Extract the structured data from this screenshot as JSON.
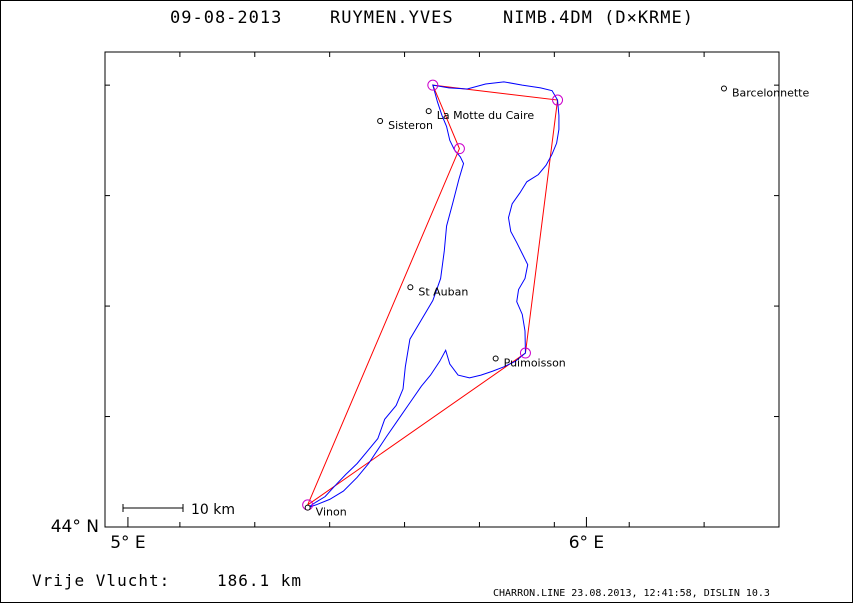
{
  "header": {
    "date": "09-08-2013",
    "pilot": "RUYMEN.YVES",
    "glider": "NIMB.4DM (D×KRME)"
  },
  "footer": {
    "distance_label": "Vrije Vlucht:",
    "distance_value": "186.1 km",
    "software": "CHARRON.LINE 23.08.2013, 12:41:58, DISLIN 10.3"
  },
  "colors": {
    "task": "#ff0000",
    "track": "#0000ff",
    "turnpoint": "#cc00cc",
    "text": "#000000"
  },
  "chart_data": {
    "type": "map",
    "xlim": [
      4.95,
      6.42
    ],
    "ylim": [
      44.0,
      44.86
    ],
    "x_ticks": [
      {
        "value": 5.0,
        "label": "5° E"
      },
      {
        "value": 6.0,
        "label": "6° E"
      }
    ],
    "y_ticks": [
      {
        "value": 44.0,
        "label": "44° N"
      }
    ],
    "scale_bar": {
      "label": "10 km",
      "km": 10
    },
    "places": [
      {
        "name": "Barcelonnette",
        "lon": 6.3,
        "lat": 44.794
      },
      {
        "name": "La Motte du Caire",
        "lon": 5.656,
        "lat": 44.753
      },
      {
        "name": "Sisteron",
        "lon": 5.55,
        "lat": 44.735
      },
      {
        "name": "St Auban",
        "lon": 5.616,
        "lat": 44.434
      },
      {
        "name": "Puimoisson",
        "lon": 5.802,
        "lat": 44.305
      },
      {
        "name": "Vinon",
        "lon": 5.392,
        "lat": 44.035
      }
    ],
    "turnpoints": [
      {
        "lon": 5.392,
        "lat": 44.04
      },
      {
        "lon": 5.665,
        "lat": 44.8
      },
      {
        "lon": 5.937,
        "lat": 44.773
      },
      {
        "lon": 5.723,
        "lat": 44.685
      },
      {
        "lon": 5.867,
        "lat": 44.315
      }
    ],
    "task": [
      [
        5.392,
        44.04
      ],
      [
        5.723,
        44.685
      ],
      [
        5.665,
        44.8
      ],
      [
        5.937,
        44.773
      ],
      [
        5.867,
        44.315
      ],
      [
        5.392,
        44.04
      ]
    ],
    "track": [
      [
        5.392,
        44.035
      ],
      [
        5.41,
        44.045
      ],
      [
        5.43,
        44.055
      ],
      [
        5.452,
        44.075
      ],
      [
        5.475,
        44.095
      ],
      [
        5.5,
        44.115
      ],
      [
        5.525,
        44.14
      ],
      [
        5.545,
        44.16
      ],
      [
        5.56,
        44.195
      ],
      [
        5.585,
        44.22
      ],
      [
        5.6,
        44.25
      ],
      [
        5.605,
        44.29
      ],
      [
        5.615,
        44.34
      ],
      [
        5.64,
        44.375
      ],
      [
        5.665,
        44.41
      ],
      [
        5.682,
        44.45
      ],
      [
        5.69,
        44.5
      ],
      [
        5.695,
        44.545
      ],
      [
        5.708,
        44.585
      ],
      [
        5.722,
        44.63
      ],
      [
        5.732,
        44.658
      ],
      [
        5.725,
        44.67
      ],
      [
        5.712,
        44.683
      ],
      [
        5.702,
        44.7
      ],
      [
        5.695,
        44.725
      ],
      [
        5.685,
        44.745
      ],
      [
        5.675,
        44.77
      ],
      [
        5.665,
        44.8
      ],
      [
        5.7,
        44.795
      ],
      [
        5.74,
        44.793
      ],
      [
        5.78,
        44.802
      ],
      [
        5.82,
        44.806
      ],
      [
        5.86,
        44.8
      ],
      [
        5.9,
        44.795
      ],
      [
        5.925,
        44.79
      ],
      [
        5.937,
        44.773
      ],
      [
        5.94,
        44.745
      ],
      [
        5.94,
        44.72
      ],
      [
        5.935,
        44.695
      ],
      [
        5.925,
        44.675
      ],
      [
        5.912,
        44.655
      ],
      [
        5.895,
        44.638
      ],
      [
        5.87,
        44.625
      ],
      [
        5.855,
        44.605
      ],
      [
        5.838,
        44.585
      ],
      [
        5.83,
        44.56
      ],
      [
        5.835,
        44.535
      ],
      [
        5.848,
        44.515
      ],
      [
        5.86,
        44.495
      ],
      [
        5.872,
        44.475
      ],
      [
        5.866,
        44.45
      ],
      [
        5.852,
        44.43
      ],
      [
        5.848,
        44.408
      ],
      [
        5.86,
        44.385
      ],
      [
        5.866,
        44.355
      ],
      [
        5.867,
        44.315
      ],
      [
        5.845,
        44.3
      ],
      [
        5.82,
        44.29
      ],
      [
        5.795,
        44.282
      ],
      [
        5.77,
        44.275
      ],
      [
        5.745,
        44.27
      ],
      [
        5.72,
        44.275
      ],
      [
        5.702,
        44.295
      ],
      [
        5.693,
        44.32
      ],
      [
        5.68,
        44.3
      ],
      [
        5.66,
        44.275
      ],
      [
        5.64,
        44.255
      ],
      [
        5.615,
        44.225
      ],
      [
        5.59,
        44.195
      ],
      [
        5.565,
        44.165
      ],
      [
        5.545,
        44.14
      ],
      [
        5.525,
        44.115
      ],
      [
        5.5,
        44.09
      ],
      [
        5.47,
        44.065
      ],
      [
        5.44,
        44.05
      ],
      [
        5.41,
        44.04
      ],
      [
        5.392,
        44.035
      ]
    ]
  }
}
